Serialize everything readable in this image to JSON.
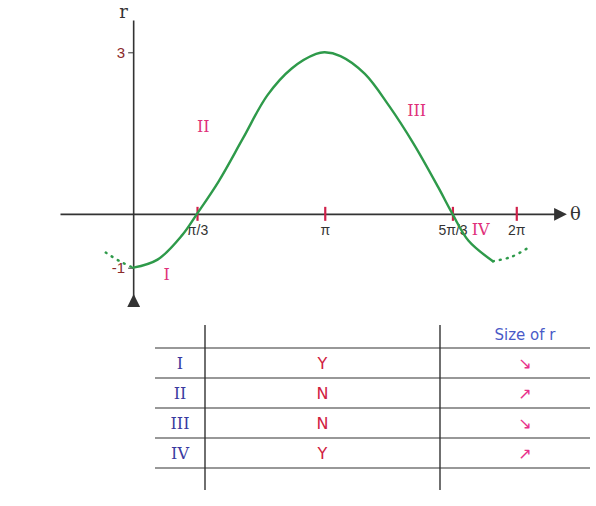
{
  "chart_data": {
    "type": "line",
    "x_label": "θ",
    "y_label": "r",
    "xlim": [
      -1.2,
      7.0
    ],
    "ylim": [
      -1.6,
      3.6
    ],
    "xticks": [
      {
        "value": 1.047,
        "label": "π/3"
      },
      {
        "value": 3.142,
        "label": "π"
      },
      {
        "value": 5.236,
        "label": "5π/3"
      },
      {
        "value": 6.283,
        "label": "2π"
      }
    ],
    "yticks": [
      -1,
      3
    ],
    "grid": false,
    "series": [
      {
        "color": "#2e9a4a",
        "line_style": "solid",
        "x": [
          0,
          0.4,
          0.8,
          1.047,
          1.4,
          1.8,
          2.2,
          2.6,
          3.0,
          3.142,
          3.4,
          3.8,
          4.2,
          4.6,
          5.0,
          5.236,
          5.5,
          5.9
        ],
        "values": [
          -1,
          -0.85,
          -0.4,
          0,
          0.6,
          1.4,
          2.2,
          2.7,
          2.97,
          3,
          2.93,
          2.6,
          2.0,
          1.3,
          0.5,
          0,
          -0.5,
          -0.88
        ]
      },
      {
        "color": "#2e9a4a",
        "line_style": "dotted",
        "x": [
          -0.45,
          -0.22,
          0,
          3.142,
          5.9,
          6.2,
          6.45
        ],
        "values": [
          -0.72,
          -0.88,
          -1,
          null,
          -0.88,
          -0.8,
          -0.65
        ]
      }
    ],
    "annotations": [
      {
        "text": "I",
        "x": 0.55,
        "y": -1.15,
        "color": "#e0307a"
      },
      {
        "text": "II",
        "x": 1.15,
        "y": 1.6,
        "color": "#e0307a"
      },
      {
        "text": "III",
        "x": 4.65,
        "y": 1.9,
        "color": "#e0307a"
      },
      {
        "text": "IV",
        "x": 5.7,
        "y": -0.3,
        "color": "#e0307a"
      }
    ]
  },
  "table": {
    "header": "Size of r",
    "rows": [
      [
        "I",
        "Y",
        "↘"
      ],
      [
        "II",
        "N",
        "↗"
      ],
      [
        "III",
        "N",
        "↘"
      ],
      [
        "IV",
        "Y",
        "↗"
      ]
    ]
  }
}
